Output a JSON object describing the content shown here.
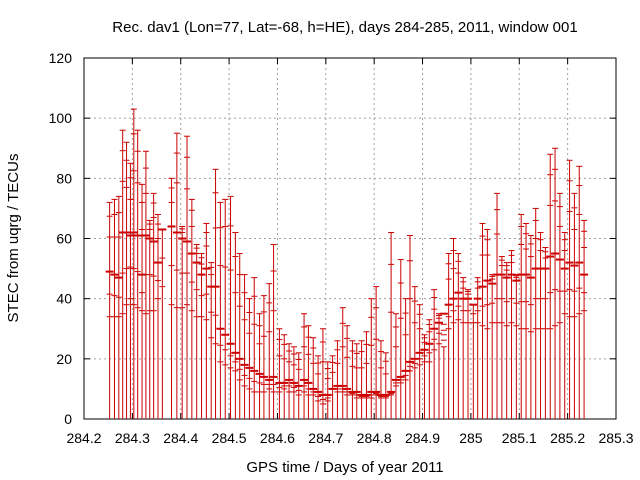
{
  "chart_data": {
    "type": "scatter",
    "style": "vertical error bars (impulses) with tick marks per observation",
    "title": "Rec. dav1 (Lon=77, Lat=-68, h=HE), days 284-285, 2011, window 001",
    "xlabel": "GPS time / Days of year 2011",
    "ylabel": "STEC from uqrg / TECUs",
    "xlim": [
      284.2,
      285.3
    ],
    "ylim": [
      0,
      120
    ],
    "xticks": [
      "284.2",
      "284.3",
      "284.4",
      "284.5",
      "284.6",
      "284.7",
      "284.8",
      "284.9",
      "285",
      "285.1",
      "285.2",
      "285.3"
    ],
    "yticks": [
      "0",
      "20",
      "40",
      "60",
      "80",
      "100",
      "120"
    ],
    "grid": true,
    "series_color": "#cc0000",
    "series": [
      {
        "name": "STEC",
        "x": [
          284.253,
          284.263,
          284.272,
          284.28,
          284.288,
          284.296,
          284.303,
          284.311,
          284.32,
          284.328,
          284.336,
          284.344,
          284.353,
          284.362,
          284.381,
          284.392,
          284.403,
          284.413,
          284.423,
          284.433,
          284.443,
          284.453,
          284.463,
          284.472,
          284.482,
          284.492,
          284.503,
          284.513,
          284.522,
          284.532,
          284.542,
          284.552,
          284.563,
          284.572,
          284.583,
          284.592,
          284.604,
          284.614,
          284.624,
          284.634,
          284.644,
          284.655,
          284.664,
          284.674,
          284.684,
          284.694,
          284.704,
          284.714,
          284.724,
          284.735,
          284.744,
          284.755,
          284.764,
          284.774,
          284.784,
          284.794,
          284.804,
          284.814,
          284.824,
          284.835,
          284.845,
          284.855,
          284.865,
          284.874,
          284.884,
          284.894,
          284.904,
          284.914,
          284.924,
          284.934,
          284.944,
          284.954,
          284.964,
          284.974,
          284.984,
          284.994,
          285.005,
          285.014,
          285.024,
          285.034,
          285.044,
          285.054,
          285.064,
          285.074,
          285.084,
          285.094,
          285.104,
          285.114,
          285.124,
          285.134,
          285.144,
          285.154,
          285.164,
          285.174,
          285.184,
          285.194,
          285.204,
          285.214,
          285.224,
          285.234
        ],
        "y": [
          72,
          73,
          74,
          96,
          92,
          85,
          103,
          96,
          78,
          89,
          66,
          75,
          68,
          63,
          80,
          95,
          64,
          94,
          73,
          58,
          55,
          65,
          52,
          83,
          72,
          73,
          74,
          62,
          55,
          48,
          40,
          47,
          35,
          41,
          45,
          58,
          30,
          28,
          25,
          24,
          22,
          35,
          31,
          27,
          21,
          30,
          19,
          21,
          26,
          37,
          31,
          26,
          25,
          26,
          29,
          40,
          44,
          26,
          22,
          62,
          35,
          53,
          40,
          61,
          44,
          38,
          28,
          33,
          43,
          35,
          24,
          55,
          60,
          55,
          47,
          43,
          38,
          47,
          65,
          63,
          48,
          75,
          54,
          52,
          56,
          48,
          68,
          65,
          61,
          70,
          62,
          57,
          88,
          90,
          75,
          62,
          86,
          75,
          84,
          66
        ],
        "y_low": [
          34,
          34,
          34,
          35,
          38,
          40,
          38,
          37,
          36,
          35,
          36,
          36,
          40,
          44,
          38,
          37,
          37,
          38,
          36,
          34,
          34,
          33,
          27,
          25,
          19,
          18,
          17,
          16,
          13,
          11,
          10,
          9,
          9,
          9,
          10,
          9,
          9,
          10,
          9,
          9,
          8,
          9,
          8,
          8,
          6,
          5,
          6,
          10,
          9,
          9,
          8,
          8,
          7,
          7,
          7,
          7,
          8,
          7,
          7,
          8,
          11,
          12,
          13,
          16,
          17,
          18,
          19,
          19,
          23,
          25,
          28,
          30,
          32,
          33,
          32,
          32,
          32,
          32,
          31,
          30,
          32,
          32,
          32,
          31,
          32,
          31,
          30,
          30,
          29,
          30,
          30,
          30,
          30,
          31,
          32,
          35,
          34,
          34,
          35,
          36
        ],
        "y_level": [
          49,
          48,
          47,
          62,
          62,
          61,
          62,
          61,
          48,
          61,
          60,
          59,
          52,
          63,
          64,
          62,
          60,
          59,
          55,
          52,
          48,
          50,
          44,
          44,
          30,
          28,
          25,
          22,
          20,
          18,
          17,
          16,
          15,
          14,
          13,
          14,
          12,
          12,
          13,
          12,
          11,
          13,
          12,
          10,
          9,
          8,
          8,
          10,
          11,
          11,
          10,
          9,
          9,
          8,
          8,
          9,
          9,
          8,
          8,
          9,
          13,
          14,
          16,
          19,
          20,
          22,
          23,
          25,
          30,
          32,
          35,
          38,
          40,
          42,
          40,
          40,
          38,
          40,
          44,
          46,
          45,
          48,
          48,
          47,
          48,
          46,
          48,
          48,
          47,
          50,
          50,
          50,
          54,
          55,
          53,
          50,
          52,
          51,
          52,
          48
        ]
      }
    ]
  }
}
